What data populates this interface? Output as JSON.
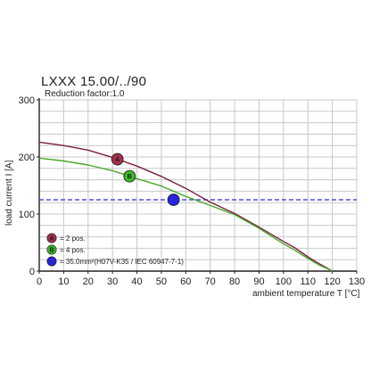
{
  "chart_data": {
    "type": "line",
    "title": "LXXX  15.00/../90",
    "subtitle": "Reduction  factor:1.0",
    "xlabel": "ambient temperature T [°C]",
    "ylabel": "load current I [A]",
    "xlim": [
      0,
      130
    ],
    "ylim": [
      0,
      300
    ],
    "xticks": [
      "0",
      "10",
      "20",
      "30",
      "40",
      "50",
      "60",
      "70",
      "80",
      "90",
      "100",
      "110",
      "120",
      "130"
    ],
    "yticks": [
      "0",
      "100",
      "200",
      "300"
    ],
    "grid": true,
    "series": [
      {
        "key": "A",
        "color": "#7a1f3d",
        "markerColor": "#a3304d",
        "markerAt": 32,
        "x": [
          0,
          10,
          20,
          30,
          40,
          50,
          60,
          70,
          80,
          90,
          100,
          105,
          110,
          115,
          118,
          120
        ],
        "y": [
          226,
          220,
          212,
          199,
          184,
          166,
          145,
          121,
          101,
          77,
          52,
          40,
          25,
          12,
          5,
          0
        ]
      },
      {
        "key": "B",
        "color": "#4aa82a",
        "markerColor": "#3cb82a",
        "markerAt": 37,
        "x": [
          0,
          10,
          20,
          30,
          40,
          50,
          60,
          70,
          80,
          90,
          100,
          105,
          110,
          115,
          118,
          120
        ],
        "y": [
          198,
          193,
          186,
          176,
          162,
          149,
          131,
          115,
          99,
          75,
          48,
          36,
          22,
          10,
          4,
          0
        ]
      }
    ],
    "reference_line": {
      "key": "C",
      "y": 125,
      "color": "#2b2bd6",
      "markerColor": "#2727d9",
      "markerAt": 55
    },
    "legend": [
      {
        "key": "A",
        "text": "= 2 pos.",
        "color": "#a3304d"
      },
      {
        "key": "B",
        "text": "= 4 pos.",
        "color": "#3cb82a"
      },
      {
        "key": "",
        "text": "= 35.0mm²(H07V-K35 / IEC 60947-7-1)",
        "color": "#2727d9"
      }
    ]
  }
}
